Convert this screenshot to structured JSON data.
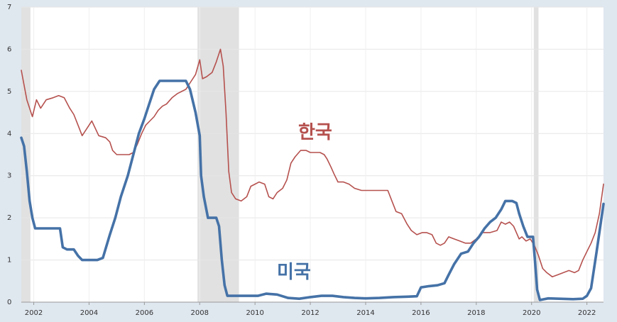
{
  "chart_data": {
    "type": "line",
    "title": "",
    "xlabel": "",
    "ylabel": "",
    "xlim": [
      2001.55,
      2022.6
    ],
    "ylim": [
      0,
      7
    ],
    "x_ticks": [
      2002,
      2004,
      2006,
      2008,
      2010,
      2012,
      2014,
      2016,
      2018,
      2020,
      2022
    ],
    "x_tick_labels": [
      "2002",
      "2004",
      "2006",
      "2008",
      "2010",
      "2012",
      "2014",
      "2016",
      "2018",
      "2020",
      "2022"
    ],
    "y_ticks": [
      0,
      1,
      2,
      3,
      4,
      5,
      6,
      7
    ],
    "y_tick_labels": [
      "0",
      "1",
      "2",
      "3",
      "4",
      "5",
      "6",
      "7"
    ],
    "grid": true,
    "recession_bands": [
      [
        2001.55,
        2001.88
      ],
      [
        2007.92,
        2009.42
      ],
      [
        2020.08,
        2020.25
      ]
    ],
    "series": [
      {
        "name": "한국",
        "color": "#b5514e",
        "points": [
          [
            2001.55,
            5.5
          ],
          [
            2001.75,
            4.8
          ],
          [
            2001.95,
            4.4
          ],
          [
            2002.1,
            4.8
          ],
          [
            2002.25,
            4.6
          ],
          [
            2002.45,
            4.8
          ],
          [
            2002.7,
            4.85
          ],
          [
            2002.9,
            4.9
          ],
          [
            2003.1,
            4.85
          ],
          [
            2003.3,
            4.6
          ],
          [
            2003.45,
            4.45
          ],
          [
            2003.6,
            4.2
          ],
          [
            2003.75,
            3.95
          ],
          [
            2003.95,
            4.15
          ],
          [
            2004.1,
            4.3
          ],
          [
            2004.35,
            3.95
          ],
          [
            2004.6,
            3.9
          ],
          [
            2004.75,
            3.8
          ],
          [
            2004.85,
            3.6
          ],
          [
            2005.0,
            3.5
          ],
          [
            2005.25,
            3.5
          ],
          [
            2005.45,
            3.5
          ],
          [
            2005.6,
            3.55
          ],
          [
            2005.75,
            3.75
          ],
          [
            2005.9,
            4.0
          ],
          [
            2006.05,
            4.2
          ],
          [
            2006.2,
            4.3
          ],
          [
            2006.35,
            4.4
          ],
          [
            2006.5,
            4.55
          ],
          [
            2006.65,
            4.65
          ],
          [
            2006.8,
            4.7
          ],
          [
            2007.0,
            4.85
          ],
          [
            2007.2,
            4.95
          ],
          [
            2007.35,
            5.0
          ],
          [
            2007.5,
            5.05
          ],
          [
            2007.65,
            5.2
          ],
          [
            2007.85,
            5.4
          ],
          [
            2008.0,
            5.75
          ],
          [
            2008.1,
            5.3
          ],
          [
            2008.25,
            5.35
          ],
          [
            2008.45,
            5.45
          ],
          [
            2008.6,
            5.7
          ],
          [
            2008.75,
            6.0
          ],
          [
            2008.85,
            5.6
          ],
          [
            2008.95,
            4.5
          ],
          [
            2009.05,
            3.1
          ],
          [
            2009.15,
            2.6
          ],
          [
            2009.3,
            2.45
          ],
          [
            2009.5,
            2.4
          ],
          [
            2009.7,
            2.5
          ],
          [
            2009.85,
            2.75
          ],
          [
            2010.0,
            2.8
          ],
          [
            2010.15,
            2.85
          ],
          [
            2010.35,
            2.8
          ],
          [
            2010.5,
            2.5
          ],
          [
            2010.65,
            2.45
          ],
          [
            2010.8,
            2.6
          ],
          [
            2011.0,
            2.7
          ],
          [
            2011.15,
            2.9
          ],
          [
            2011.3,
            3.3
          ],
          [
            2011.45,
            3.45
          ],
          [
            2011.65,
            3.6
          ],
          [
            2011.85,
            3.6
          ],
          [
            2012.0,
            3.55
          ],
          [
            2012.2,
            3.55
          ],
          [
            2012.35,
            3.55
          ],
          [
            2012.5,
            3.5
          ],
          [
            2012.6,
            3.4
          ],
          [
            2012.75,
            3.2
          ],
          [
            2012.85,
            3.05
          ],
          [
            2013.0,
            2.85
          ],
          [
            2013.2,
            2.85
          ],
          [
            2013.4,
            2.8
          ],
          [
            2013.6,
            2.7
          ],
          [
            2013.85,
            2.65
          ],
          [
            2014.2,
            2.65
          ],
          [
            2014.5,
            2.65
          ],
          [
            2014.8,
            2.65
          ],
          [
            2014.95,
            2.4
          ],
          [
            2015.1,
            2.15
          ],
          [
            2015.3,
            2.1
          ],
          [
            2015.5,
            1.85
          ],
          [
            2015.65,
            1.7
          ],
          [
            2015.85,
            1.6
          ],
          [
            2016.05,
            1.65
          ],
          [
            2016.2,
            1.65
          ],
          [
            2016.4,
            1.6
          ],
          [
            2016.55,
            1.4
          ],
          [
            2016.7,
            1.35
          ],
          [
            2016.85,
            1.4
          ],
          [
            2017.0,
            1.55
          ],
          [
            2017.2,
            1.5
          ],
          [
            2017.4,
            1.45
          ],
          [
            2017.6,
            1.4
          ],
          [
            2017.8,
            1.4
          ],
          [
            2018.0,
            1.5
          ],
          [
            2018.2,
            1.65
          ],
          [
            2018.5,
            1.65
          ],
          [
            2018.75,
            1.7
          ],
          [
            2018.9,
            1.9
          ],
          [
            2019.05,
            1.85
          ],
          [
            2019.2,
            1.9
          ],
          [
            2019.35,
            1.8
          ],
          [
            2019.45,
            1.65
          ],
          [
            2019.55,
            1.5
          ],
          [
            2019.65,
            1.55
          ],
          [
            2019.8,
            1.45
          ],
          [
            2019.95,
            1.5
          ],
          [
            2020.1,
            1.35
          ],
          [
            2020.25,
            1.1
          ],
          [
            2020.4,
            0.8
          ],
          [
            2020.55,
            0.7
          ],
          [
            2020.75,
            0.6
          ],
          [
            2020.95,
            0.65
          ],
          [
            2021.15,
            0.7
          ],
          [
            2021.35,
            0.75
          ],
          [
            2021.55,
            0.7
          ],
          [
            2021.7,
            0.75
          ],
          [
            2021.85,
            1.0
          ],
          [
            2022.0,
            1.2
          ],
          [
            2022.15,
            1.4
          ],
          [
            2022.3,
            1.65
          ],
          [
            2022.45,
            2.1
          ],
          [
            2022.6,
            2.8
          ]
        ]
      },
      {
        "name": "미국",
        "color": "#4572a7",
        "points": [
          [
            2001.55,
            3.9
          ],
          [
            2001.65,
            3.7
          ],
          [
            2001.75,
            3.1
          ],
          [
            2001.85,
            2.4
          ],
          [
            2001.95,
            2.0
          ],
          [
            2002.05,
            1.75
          ],
          [
            2002.3,
            1.75
          ],
          [
            2002.6,
            1.75
          ],
          [
            2002.95,
            1.75
          ],
          [
            2003.05,
            1.3
          ],
          [
            2003.2,
            1.25
          ],
          [
            2003.45,
            1.25
          ],
          [
            2003.6,
            1.1
          ],
          [
            2003.75,
            1.0
          ],
          [
            2004.0,
            1.0
          ],
          [
            2004.3,
            1.0
          ],
          [
            2004.5,
            1.05
          ],
          [
            2004.75,
            1.6
          ],
          [
            2004.95,
            2.0
          ],
          [
            2005.15,
            2.5
          ],
          [
            2005.4,
            3.0
          ],
          [
            2005.6,
            3.5
          ],
          [
            2005.8,
            4.0
          ],
          [
            2006.0,
            4.35
          ],
          [
            2006.2,
            4.75
          ],
          [
            2006.35,
            5.05
          ],
          [
            2006.55,
            5.25
          ],
          [
            2006.9,
            5.25
          ],
          [
            2007.2,
            5.25
          ],
          [
            2007.5,
            5.25
          ],
          [
            2007.65,
            5.05
          ],
          [
            2007.85,
            4.5
          ],
          [
            2008.0,
            3.95
          ],
          [
            2008.05,
            3.0
          ],
          [
            2008.15,
            2.5
          ],
          [
            2008.3,
            2.0
          ],
          [
            2008.6,
            2.0
          ],
          [
            2008.7,
            1.8
          ],
          [
            2008.8,
            1.0
          ],
          [
            2008.9,
            0.4
          ],
          [
            2009.0,
            0.15
          ],
          [
            2009.15,
            0.15
          ],
          [
            2009.4,
            0.15
          ],
          [
            2009.8,
            0.15
          ],
          [
            2010.1,
            0.15
          ],
          [
            2010.4,
            0.2
          ],
          [
            2010.8,
            0.18
          ],
          [
            2011.2,
            0.1
          ],
          [
            2011.6,
            0.08
          ],
          [
            2012.0,
            0.12
          ],
          [
            2012.4,
            0.15
          ],
          [
            2012.8,
            0.15
          ],
          [
            2013.2,
            0.12
          ],
          [
            2013.6,
            0.1
          ],
          [
            2014.0,
            0.09
          ],
          [
            2014.5,
            0.1
          ],
          [
            2015.0,
            0.12
          ],
          [
            2015.5,
            0.13
          ],
          [
            2015.85,
            0.14
          ],
          [
            2016.0,
            0.35
          ],
          [
            2016.3,
            0.38
          ],
          [
            2016.6,
            0.4
          ],
          [
            2016.85,
            0.45
          ],
          [
            2017.0,
            0.65
          ],
          [
            2017.2,
            0.9
          ],
          [
            2017.45,
            1.15
          ],
          [
            2017.7,
            1.2
          ],
          [
            2017.9,
            1.4
          ],
          [
            2018.1,
            1.55
          ],
          [
            2018.3,
            1.75
          ],
          [
            2018.5,
            1.9
          ],
          [
            2018.7,
            2.0
          ],
          [
            2018.9,
            2.2
          ],
          [
            2019.05,
            2.4
          ],
          [
            2019.3,
            2.4
          ],
          [
            2019.45,
            2.35
          ],
          [
            2019.55,
            2.1
          ],
          [
            2019.7,
            1.8
          ],
          [
            2019.85,
            1.55
          ],
          [
            2020.05,
            1.55
          ],
          [
            2020.12,
            1.0
          ],
          [
            2020.2,
            0.3
          ],
          [
            2020.3,
            0.05
          ],
          [
            2020.6,
            0.09
          ],
          [
            2021.0,
            0.08
          ],
          [
            2021.5,
            0.07
          ],
          [
            2021.85,
            0.08
          ],
          [
            2022.0,
            0.15
          ],
          [
            2022.15,
            0.33
          ],
          [
            2022.35,
            1.2
          ],
          [
            2022.6,
            2.33
          ]
        ]
      }
    ]
  }
}
